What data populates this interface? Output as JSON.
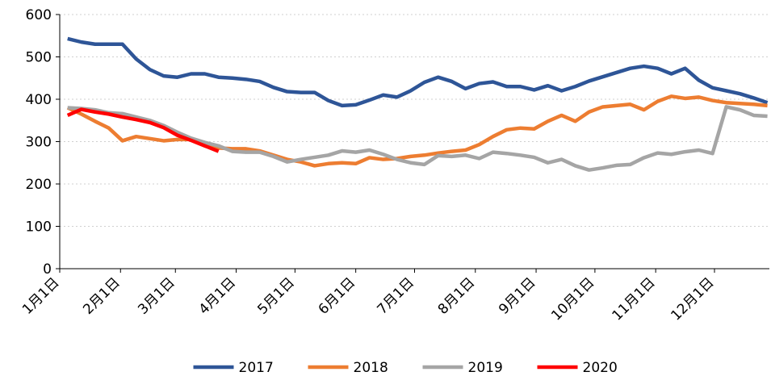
{
  "chart_data": {
    "type": "line",
    "x": [
      4,
      11,
      18,
      25,
      32,
      39,
      46,
      53,
      60,
      67,
      74,
      81,
      88,
      95,
      102,
      109,
      116,
      123,
      130,
      137,
      144,
      151,
      158,
      165,
      172,
      179,
      186,
      193,
      200,
      207,
      214,
      221,
      228,
      235,
      242,
      249,
      256,
      263,
      270,
      277,
      284,
      291,
      298,
      305,
      312,
      319,
      326,
      333,
      340,
      347,
      354,
      361
    ],
    "xlim": [
      0,
      362
    ],
    "xticks": [
      {
        "value": 0,
        "label": "1月1日"
      },
      {
        "value": 31,
        "label": "2月1日"
      },
      {
        "value": 59,
        "label": "3月1日"
      },
      {
        "value": 90,
        "label": "4月1日"
      },
      {
        "value": 120,
        "label": "5月1日"
      },
      {
        "value": 151,
        "label": "6月1日"
      },
      {
        "value": 181,
        "label": "7月1日"
      },
      {
        "value": 212,
        "label": "8月1日"
      },
      {
        "value": 243,
        "label": "9月1日"
      },
      {
        "value": 273,
        "label": "10月1日"
      },
      {
        "value": 304,
        "label": "11月1日"
      },
      {
        "value": 334,
        "label": "12月1日"
      }
    ],
    "ylim": [
      0,
      600
    ],
    "yticks": [
      0,
      100,
      200,
      300,
      400,
      500,
      600
    ],
    "grid": true,
    "legend": "bottom",
    "series": [
      {
        "name": "2017",
        "color": "#2e5597",
        "values": [
          543,
          535,
          530,
          530,
          530,
          495,
          470,
          455,
          452,
          460,
          460,
          452,
          450,
          447,
          442,
          428,
          418,
          416,
          416,
          397,
          385,
          387,
          398,
          410,
          405,
          420,
          440,
          452,
          442,
          425,
          437,
          441,
          430,
          430,
          422,
          432,
          420,
          430,
          443,
          453,
          463,
          473,
          478,
          473,
          460,
          473,
          445,
          427,
          420,
          413,
          403,
          392
        ]
      },
      {
        "name": "2018",
        "color": "#ed7d31",
        "values": [
          380,
          365,
          348,
          332,
          302,
          312,
          307,
          302,
          305,
          305,
          295,
          285,
          283,
          283,
          278,
          268,
          258,
          252,
          243,
          248,
          250,
          248,
          262,
          258,
          260,
          265,
          268,
          273,
          277,
          280,
          293,
          312,
          328,
          332,
          330,
          348,
          362,
          348,
          370,
          382,
          385,
          388,
          375,
          395,
          407,
          402,
          405,
          397,
          392,
          390,
          388,
          385
        ]
      },
      {
        "name": "2019",
        "color": "#a5a5a5",
        "values": [
          380,
          378,
          375,
          368,
          366,
          358,
          350,
          338,
          322,
          308,
          298,
          290,
          277,
          275,
          275,
          265,
          252,
          258,
          263,
          268,
          278,
          275,
          280,
          270,
          258,
          250,
          246,
          267,
          265,
          268,
          260,
          275,
          272,
          268,
          263,
          250,
          258,
          243,
          233,
          238,
          244,
          246,
          262,
          273,
          270,
          276,
          280,
          272,
          382,
          375,
          362,
          360
        ]
      },
      {
        "name": "2020",
        "color": "#ff0000",
        "values": [
          362,
          376,
          370,
          365,
          358,
          352,
          345,
          333,
          315,
          303,
          290,
          277,
          null,
          null,
          null,
          null,
          null,
          null,
          null,
          null,
          null,
          null,
          null,
          null,
          null,
          null,
          null,
          null,
          null,
          null,
          null,
          null,
          null,
          null,
          null,
          null,
          null,
          null,
          null,
          null,
          null,
          null,
          null,
          null,
          null,
          null,
          null,
          null,
          null,
          null,
          null,
          null
        ]
      }
    ]
  }
}
